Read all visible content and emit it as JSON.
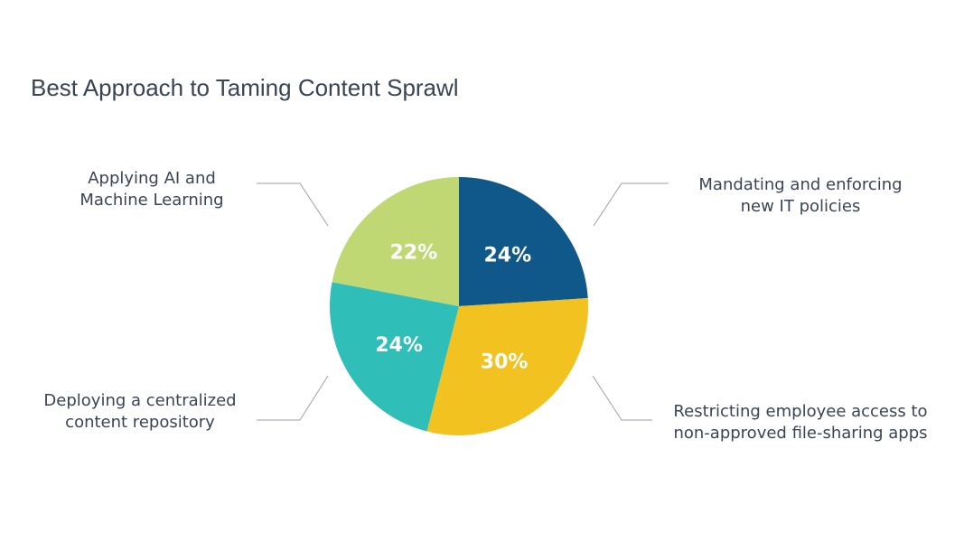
{
  "chart_data": {
    "type": "pie",
    "title": "Best Approach to Taming Content Sprawl",
    "start_angle_deg": 0,
    "direction": "clockwise",
    "legend": "callouts",
    "slices": [
      {
        "label_lines": [
          "Mandating and enforcing",
          "new IT policies"
        ],
        "value": 24,
        "value_label": "24%",
        "color": "#10588a"
      },
      {
        "label_lines": [
          "Restricting employee access to",
          "non-approved file-sharing apps"
        ],
        "value": 30,
        "value_label": "30%",
        "color": "#f2c220"
      },
      {
        "label_lines": [
          "Deploying a centralized",
          "content repository"
        ],
        "value": 24,
        "value_label": "24%",
        "color": "#2fbfb8"
      },
      {
        "label_lines": [
          "Applying AI and",
          "Machine Learning"
        ],
        "value": 22,
        "value_label": "22%",
        "color": "#c0d874"
      }
    ]
  }
}
